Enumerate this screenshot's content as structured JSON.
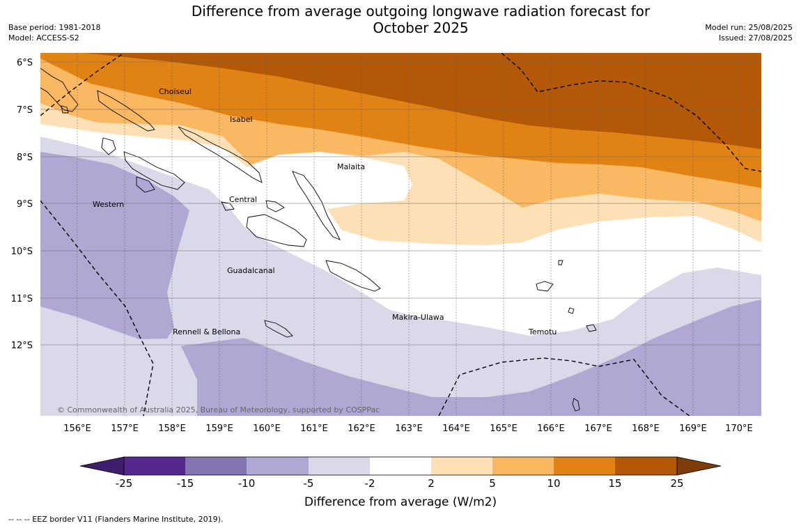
{
  "title_line1": "Difference from average outgoing longwave radiation forecast for",
  "title_line2": "October 2025",
  "meta": {
    "base_period": "Base period: 1981-2018",
    "model": "Model: ACCESS-S2",
    "model_run": "Model run: 25/08/2025",
    "issued": "Issued: 27/08/2025"
  },
  "map": {
    "lat_labels": [
      "6°S",
      "7°S",
      "8°S",
      "9°S",
      "10°S",
      "11°S",
      "12°S"
    ],
    "lon_labels": [
      "156°E",
      "157°E",
      "158°E",
      "159°E",
      "160°E",
      "161°E",
      "162°E",
      "163°E",
      "164°E",
      "165°E",
      "166°E",
      "167°E",
      "168°E",
      "169°E",
      "170°E"
    ],
    "place_labels": [
      "Choiseul",
      "Isabel",
      "Malaita",
      "Central",
      "Western",
      "Guadalcanal",
      "Makira-Ulawa",
      "Temotu",
      "Rennell & Bellona"
    ],
    "copyright": "© Commonwealth of Australia 2025, Bureau of Meteorology, supported by COSPPac"
  },
  "colorbar": {
    "ticks": [
      "-25",
      "-15",
      "-10",
      "-5",
      "-2",
      "2",
      "5",
      "10",
      "15",
      "25"
    ],
    "colors": [
      "#3f1f6b",
      "#54288c",
      "#8375b0",
      "#b0a8d3",
      "#d9d9ea",
      "#ffffff",
      "#fee0b6",
      "#fbb862",
      "#e08214",
      "#b35806",
      "#7f3b08"
    ],
    "label": "Difference from average (W/m2)"
  },
  "footer": "--  --  -- EEZ border V11 (Flanders Marine Institute, 2019)."
}
